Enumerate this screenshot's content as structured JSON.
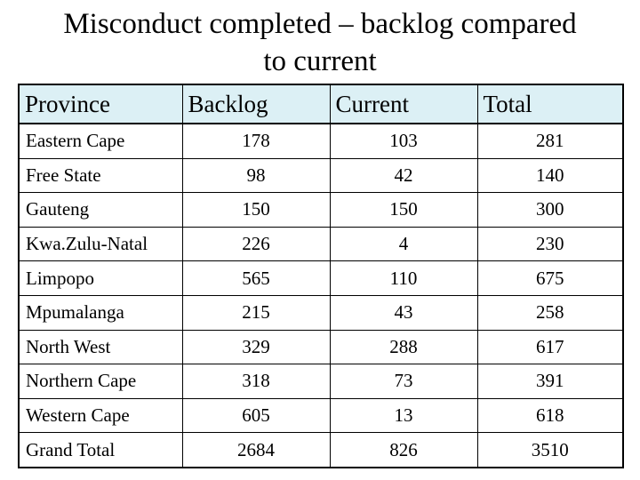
{
  "title": {
    "line1": "Misconduct completed – backlog compared",
    "line2": "to current"
  },
  "table": {
    "headers": [
      "Province",
      "Backlog",
      "Current",
      "Total"
    ],
    "rows": [
      [
        "Eastern Cape",
        "178",
        "103",
        "281"
      ],
      [
        "Free State",
        "98",
        "42",
        "140"
      ],
      [
        "Gauteng",
        "150",
        "150",
        "300"
      ],
      [
        "Kwa.Zulu-Natal",
        "226",
        "4",
        "230"
      ],
      [
        "Limpopo",
        "565",
        "110",
        "675"
      ],
      [
        "Mpumalanga",
        "215",
        "43",
        "258"
      ],
      [
        "North West",
        "329",
        "288",
        "617"
      ],
      [
        "Northern Cape",
        "318",
        "73",
        "391"
      ],
      [
        "Western Cape",
        "605",
        "13",
        "618"
      ],
      [
        "Grand Total",
        "2684",
        "826",
        "3510"
      ]
    ]
  },
  "colors": {
    "header_bg": "#dcf0f5",
    "border": "#000000"
  }
}
